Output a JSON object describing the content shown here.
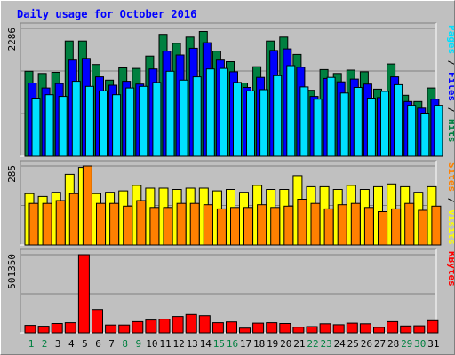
{
  "chart_data": {
    "type": "bar",
    "title": "Daily usage for October 2016",
    "categories": [
      "1",
      "2",
      "3",
      "4",
      "5",
      "6",
      "7",
      "8",
      "9",
      "10",
      "11",
      "12",
      "13",
      "14",
      "15",
      "16",
      "17",
      "18",
      "19",
      "20",
      "21",
      "22",
      "23",
      "24",
      "25",
      "26",
      "27",
      "28",
      "29",
      "30",
      "31"
    ],
    "weekend_days": [
      "1",
      "2",
      "8",
      "9",
      "15",
      "16",
      "22",
      "23",
      "29",
      "30"
    ],
    "panels": [
      {
        "id": "usage",
        "y_max_label": "2286",
        "y_max": 2286,
        "right_labels": [
          {
            "text": "Hits",
            "color": "#008040"
          },
          {
            "text": "Files",
            "color": "#0000ff"
          },
          {
            "text": "Pages",
            "color": "#00e0ff"
          }
        ],
        "series": [
          {
            "name": "Hits",
            "color": "#008040",
            "values": [
              1520,
              1480,
              1500,
              2060,
              2060,
              1640,
              1360,
              1580,
              1570,
              1790,
              2180,
              2020,
              2130,
              2230,
              1880,
              1690,
              1310,
              1600,
              2060,
              2130,
              1820,
              1180,
              1550,
              1480,
              1540,
              1510,
              1200,
              1650,
              1090,
              980,
              1220
            ]
          },
          {
            "name": "Files",
            "color": "#0000ff",
            "values": [
              1310,
              1220,
              1300,
              1720,
              1750,
              1420,
              1270,
              1340,
              1290,
              1560,
              1880,
              1810,
              1930,
              2030,
              1720,
              1510,
              1230,
              1410,
              1890,
              1920,
              1590,
              1070,
              1390,
              1330,
              1380,
              1290,
              1050,
              1420,
              980,
              860,
              1020
            ]
          },
          {
            "name": "Pages",
            "color": "#00e0ff",
            "values": [
              1040,
              1100,
              1070,
              1340,
              1250,
              1170,
              1100,
              1220,
              1250,
              1320,
              1520,
              1360,
              1420,
              1560,
              1570,
              1320,
              1170,
              1190,
              1440,
              1620,
              1240,
              1020,
              1410,
              1130,
              1230,
              1040,
              1160,
              1280,
              910,
              770,
              910
            ]
          }
        ]
      },
      {
        "id": "visits",
        "y_max_label": "285",
        "y_max": 285,
        "right_labels": [
          {
            "text": "Visits",
            "color": "#ffff00"
          },
          {
            "text": "Sites",
            "color": "#ff8000"
          }
        ],
        "series": [
          {
            "name": "Visits",
            "color": "#ffff00",
            "values": [
              185,
              175,
              190,
              255,
              280,
              185,
              190,
              195,
              215,
              205,
              205,
              200,
              205,
              205,
              195,
              200,
              190,
              215,
              200,
              200,
              250,
              210,
              210,
              200,
              215,
              200,
              210,
              220,
              210,
              190,
              210
            ]
          },
          {
            "name": "Sites",
            "color": "#ff8000",
            "values": [
              150,
              150,
              160,
              185,
              285,
              150,
              150,
              140,
              160,
              135,
              135,
              150,
              150,
              145,
              130,
              135,
              135,
              145,
              135,
              140,
              165,
              150,
              130,
              145,
              150,
              135,
              120,
              130,
              150,
              125,
              140
            ]
          }
        ]
      },
      {
        "id": "kbytes",
        "y_max_label": "501350",
        "y_max": 501350,
        "right_labels": [
          {
            "text": "KBytes",
            "color": "#ff0000"
          }
        ],
        "series": [
          {
            "name": "KBytes",
            "color": "#ff0000",
            "values": [
              48000,
              42000,
              60000,
              65000,
              501350,
              150000,
              50000,
              50000,
              72000,
              82000,
              88000,
              105000,
              118000,
              110000,
              65000,
              70000,
              30000,
              62000,
              65000,
              60000,
              36000,
              40000,
              58000,
              52000,
              62000,
              58000,
              35000,
              72000,
              44000,
              45000,
              78000
            ]
          }
        ]
      }
    ]
  }
}
